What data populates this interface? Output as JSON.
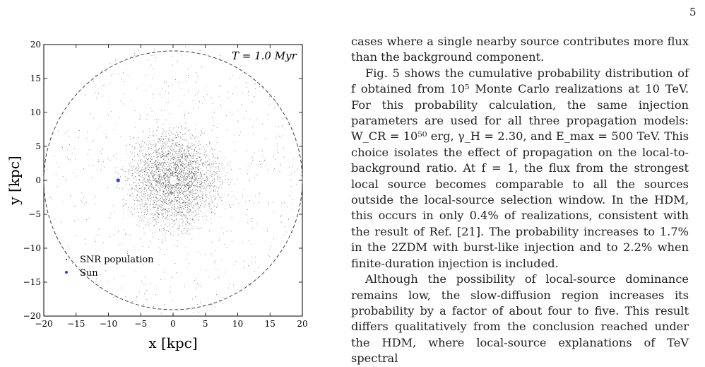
{
  "page": {
    "number": "5"
  },
  "figure": {
    "annotation": "T = 1.0 Myr",
    "xlabel": "x [kpc]",
    "ylabel": "y [kpc]",
    "xticks": [
      "−20",
      "−15",
      "−10",
      "−5",
      "0",
      "5",
      "10",
      "15",
      "20"
    ],
    "yticks": [
      "20",
      "15",
      "10",
      "5",
      "0",
      "−5",
      "−10",
      "−15",
      "−20"
    ],
    "legend": [
      "SNR population",
      "Sun"
    ],
    "colors": {
      "population": "#1a1a1a",
      "sun": "#1f3cff",
      "boundary": "#444444"
    }
  },
  "chart_data": {
    "type": "scatter",
    "xlabel": "x [kpc]",
    "ylabel": "y [kpc]",
    "xlim": [
      -20,
      20
    ],
    "ylim": [
      -20,
      20
    ],
    "series": [
      {
        "name": "SNR population",
        "distribution": "dense cloud centred at (0,0), densest within ~8 kpc, thinning out to the 20 kpc boundary, sparse near the centre"
      },
      {
        "name": "Sun",
        "points": [
          [
            -8.5,
            0.0
          ]
        ]
      }
    ],
    "boundary_radius_kpc": 20,
    "annotation": "T = 1.0 Myr"
  },
  "text": {
    "para1": "cases where a single nearby source contributes more flux than the background component.",
    "para2": "Fig. 5 shows the cumulative probability distribution of f obtained from 10⁵ Monte Carlo realizations at 10 TeV. For this probability calculation, the same injection parameters are used for all three propagation models: W_CR = 10⁵⁰ erg, γ_H = 2.30, and E_max = 500 TeV. This choice isolates the effect of propagation on the local-to-background ratio. At f = 1, the flux from the strongest local source becomes comparable to all the sources outside the local-source selection window. In the HDM, this occurs in only 0.4% of realizations, consistent with the result of Ref. [21]. The probability increases to 1.7% in the 2ZDM with burst-like injection and to 2.2% when finite-duration injection is included.",
    "para3": "Although the possibility of local-source dominance remains low, the slow-diffusion region increases its probability by a factor of about four to five. This result differs qualitatively from the conclusion reached under the HDM, where local-source explanations of TeV spectral"
  }
}
